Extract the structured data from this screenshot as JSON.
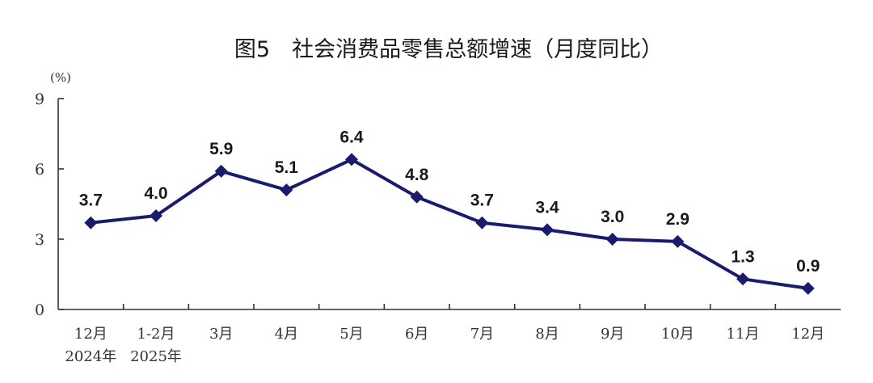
{
  "chart_data": {
    "type": "line",
    "title": "图5　社会消费品零售总额增速（月度同比）",
    "unit_label": "(%)",
    "xlabel": "",
    "ylabel": "",
    "ylim": [
      0,
      9
    ],
    "yticks": [
      "0",
      "3",
      "6",
      "9"
    ],
    "yticks_values": [
      0,
      3,
      6,
      9
    ],
    "categories": [
      [
        "12月",
        "2024年"
      ],
      [
        "1-2月",
        "2025年"
      ],
      [
        "3月",
        ""
      ],
      [
        "4月",
        ""
      ],
      [
        "5月",
        ""
      ],
      [
        "6月",
        ""
      ],
      [
        "7月",
        ""
      ],
      [
        "8月",
        ""
      ],
      [
        "9月",
        ""
      ],
      [
        "10月",
        ""
      ],
      [
        "11月",
        ""
      ],
      [
        "12月",
        ""
      ]
    ],
    "series": [
      {
        "values": [
          3.7,
          4.0,
          5.9,
          5.1,
          6.4,
          4.8,
          3.7,
          3.4,
          3.0,
          2.9,
          1.3,
          0.9
        ],
        "labels": [
          "3.7",
          "4.0",
          "5.9",
          "5.1",
          "6.4",
          "4.8",
          "3.7",
          "3.4",
          "3.0",
          "2.9",
          "1.3",
          "0.9"
        ],
        "color": "#1a1a6e",
        "marker": "diamond"
      }
    ],
    "grid": false,
    "legend": "none"
  }
}
